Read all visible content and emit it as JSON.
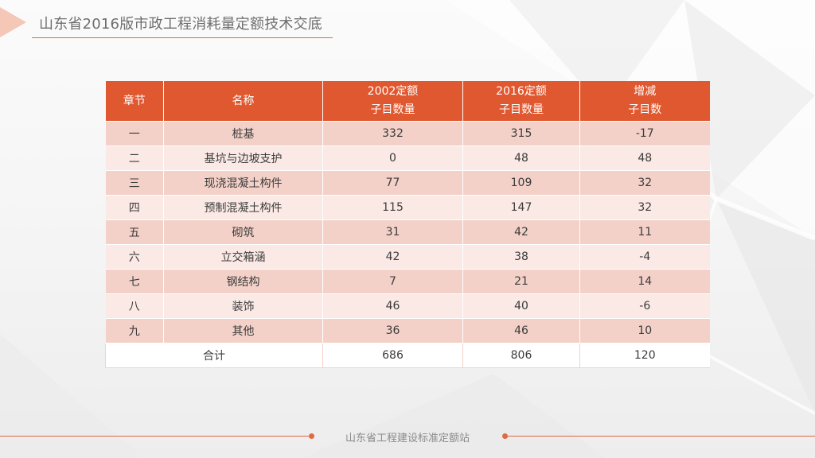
{
  "page": {
    "title": "山东省2016版市政工程消耗量定额技术交底",
    "footer": "山东省工程建设标准定额站"
  },
  "table": {
    "headers": [
      {
        "line1": "章节",
        "line2": ""
      },
      {
        "line1": "名称",
        "line2": ""
      },
      {
        "line1": "2002定额",
        "line2": "子目数量"
      },
      {
        "line1": "2016定额",
        "line2": "子目数量"
      },
      {
        "line1": "增减",
        "line2": "子目数"
      }
    ],
    "rows": [
      {
        "chapter": "一",
        "name": "桩基",
        "v2002": "332",
        "v2016": "315",
        "diff": "-17"
      },
      {
        "chapter": "二",
        "name": "基坑与边坡支护",
        "v2002": "0",
        "v2016": "48",
        "diff": "48"
      },
      {
        "chapter": "三",
        "name": "现浇混凝土构件",
        "v2002": "77",
        "v2016": "109",
        "diff": "32"
      },
      {
        "chapter": "四",
        "name": "预制混凝土构件",
        "v2002": "115",
        "v2016": "147",
        "diff": "32"
      },
      {
        "chapter": "五",
        "name": "砌筑",
        "v2002": "31",
        "v2016": "42",
        "diff": "11"
      },
      {
        "chapter": "六",
        "name": "立交箱涵",
        "v2002": "42",
        "v2016": "38",
        "diff": "-4"
      },
      {
        "chapter": "七",
        "name": "钢结构",
        "v2002": "7",
        "v2016": "21",
        "diff": "14"
      },
      {
        "chapter": "八",
        "name": "装饰",
        "v2002": "46",
        "v2016": "40",
        "diff": "-6"
      },
      {
        "chapter": "九",
        "name": "其他",
        "v2002": "36",
        "v2016": "46",
        "diff": "10"
      }
    ],
    "total": {
      "label": "合计",
      "v2002": "686",
      "v2016": "806",
      "diff": "120"
    }
  },
  "colors": {
    "accent": "#e0582f",
    "row_dark": "#f3d1c8",
    "row_light": "#fae9e5"
  }
}
